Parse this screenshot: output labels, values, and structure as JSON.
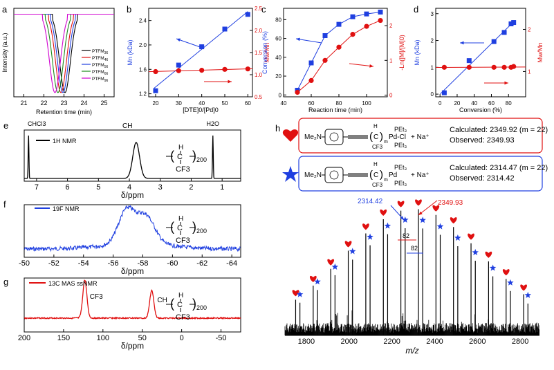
{
  "colors": {
    "blue": "#1f3fe0",
    "red": "#e01010",
    "black": "#000000",
    "green": "#1a8a1a",
    "magenta": "#d000d0"
  },
  "panel_labels": {
    "a": "a",
    "b": "b",
    "c": "c",
    "d": "d",
    "e": "e",
    "f": "f",
    "g": "g",
    "h": "h"
  },
  "chart_data": [
    {
      "id": "a",
      "type": "line",
      "xlabel": "Retention time (min)",
      "ylabel": "Intensity (a.u.)",
      "xlim": [
        20.5,
        25.5
      ],
      "xticks": [
        21,
        22,
        23,
        24,
        25
      ],
      "ylim": [
        0,
        1.05
      ],
      "series": [
        {
          "name": "PTFM36",
          "label": "PTFM",
          "sub": "36",
          "color": "#000000",
          "center": 23.05,
          "sigma": 0.27
        },
        {
          "name": "PTFM46",
          "label": "PTFM",
          "sub": "46",
          "color": "#e01010",
          "center": 22.85,
          "sigma": 0.27
        },
        {
          "name": "PTFM56",
          "label": "PTFM",
          "sub": "56",
          "color": "#1f3fe0",
          "center": 22.95,
          "sigma": 0.27
        },
        {
          "name": "PTFM66",
          "label": "PTFM",
          "sub": "66",
          "color": "#1a8a1a",
          "center": 22.7,
          "sigma": 0.27
        },
        {
          "name": "PTFM96",
          "label": "PTFM",
          "sub": "96",
          "color": "#d000d0",
          "center": 22.55,
          "sigma": 0.27
        }
      ]
    },
    {
      "id": "b",
      "type": "scatter",
      "xlabel": "[DTE]0/[Pd]0",
      "xlim": [
        17,
        62
      ],
      "xticks": [
        20,
        30,
        40,
        50,
        60
      ],
      "ylabel_left": "Mn (kDa)",
      "ylim_left": [
        1.15,
        2.6
      ],
      "yticks_left": [
        1.2,
        1.6,
        2.0,
        2.4
      ],
      "ylabel_right": "Mw/Mn",
      "ylim_right": [
        0.5,
        2.5
      ],
      "yticks_right": [
        0.5,
        1.0,
        1.5,
        2.0,
        2.5
      ],
      "series": [
        {
          "name": "Mn",
          "axis": "left",
          "marker": "square",
          "color": "#1f3fe0",
          "x": [
            20,
            30,
            40,
            50,
            60
          ],
          "y": [
            1.25,
            1.67,
            1.97,
            2.26,
            2.5
          ]
        },
        {
          "name": "Mw/Mn",
          "axis": "right",
          "marker": "circle",
          "color": "#e01010",
          "x": [
            20,
            30,
            40,
            50,
            60
          ],
          "y": [
            1.07,
            1.09,
            1.1,
            1.12,
            1.13
          ]
        }
      ]
    },
    {
      "id": "c",
      "type": "scatter",
      "xlabel": "Reaction time (min)",
      "xlim": [
        40,
        115
      ],
      "xticks": [
        40,
        60,
        80,
        100
      ],
      "ylabel_left": "Conversion (%)",
      "ylim_left": [
        -2,
        92
      ],
      "yticks_left": [
        0,
        20,
        40,
        60,
        80
      ],
      "ylabel_right": "-Ln([M]/[M]0)",
      "ylim_right": [
        -0.05,
        2.5
      ],
      "yticks_right": [
        0,
        1,
        2
      ],
      "series": [
        {
          "name": "Conversion",
          "axis": "left",
          "marker": "square",
          "color": "#1f3fe0",
          "x": [
            50,
            60,
            70,
            80,
            90,
            100,
            110
          ],
          "y": [
            5,
            34,
            63,
            75,
            83,
            86,
            88
          ]
        },
        {
          "name": "-Ln([M]/[M]0)",
          "axis": "right",
          "marker": "circle",
          "color": "#e01010",
          "x": [
            50,
            60,
            70,
            80,
            90,
            100,
            110
          ],
          "y": [
            0.08,
            0.42,
            1.0,
            1.38,
            1.75,
            1.98,
            2.15
          ]
        }
      ]
    },
    {
      "id": "d",
      "type": "scatter",
      "xlabel": "Conversion (%)",
      "xlim": [
        -5,
        100
      ],
      "xticks": [
        0,
        20,
        40,
        60,
        80
      ],
      "ylabel_left": "Mn (kDa)",
      "ylim_left": [
        -0.1,
        3.2
      ],
      "yticks_left": [
        0,
        1,
        2,
        3
      ],
      "ylabel_right": "Mw/Mn",
      "ylim_right": [
        0.4,
        2.5
      ],
      "yticks_right": [
        1,
        2
      ],
      "series": [
        {
          "name": "Mn",
          "axis": "left",
          "marker": "square",
          "color": "#1f3fe0",
          "x": [
            5,
            34,
            63,
            75,
            83,
            86
          ],
          "y": [
            0.05,
            1.25,
            1.96,
            2.3,
            2.62,
            2.67
          ]
        },
        {
          "name": "Mw/Mn",
          "axis": "right",
          "marker": "circle",
          "color": "#e01010",
          "x": [
            5,
            34,
            63,
            75,
            83,
            86
          ],
          "y": [
            1.1,
            1.1,
            1.1,
            1.1,
            1.1,
            1.12
          ]
        }
      ]
    },
    {
      "id": "e",
      "type": "line",
      "xlabel": "δ/ppm",
      "xlim": [
        7.4,
        0.4
      ],
      "xticks": [
        7,
        6,
        5,
        4,
        3,
        2,
        1
      ],
      "legend": "1H NMR",
      "annotations": [
        {
          "text": "CHCl3",
          "x": 7.26
        },
        {
          "text": "CH",
          "x": 3.8
        },
        {
          "text": "H2O",
          "x": 1.3
        }
      ]
    },
    {
      "id": "f",
      "type": "line",
      "xlabel": "δ/ppm",
      "xlim": [
        -50,
        -64.6
      ],
      "xticks": [
        -50,
        -52,
        -54,
        -56,
        -58,
        -60,
        -62,
        -64
      ],
      "legend": "19F NMR"
    },
    {
      "id": "g",
      "type": "line",
      "xlabel": "δ/ppm",
      "xlim": [
        200,
        -75
      ],
      "xticks": [
        200,
        150,
        100,
        50,
        0,
        -50
      ],
      "legend": "13C MAS ssNMR",
      "annotations": [
        {
          "text": "CF3",
          "x": 122
        },
        {
          "text": "CH",
          "x": 38
        }
      ]
    },
    {
      "id": "h",
      "type": "bar",
      "xlabel": "m/z",
      "xlim": [
        1700,
        2890
      ],
      "xticks": [
        1800,
        2000,
        2200,
        2400,
        2600,
        2800
      ],
      "series": [
        {
          "name": "heart",
          "marker": "heart",
          "color": "#e01010",
          "x": [
            1750,
            1832,
            1914,
            1996,
            2078,
            2160,
            2242,
            2324,
            2406,
            2488,
            2570,
            2652,
            2734,
            2816
          ]
        },
        {
          "name": "star",
          "marker": "star",
          "color": "#1f3fe0",
          "x": [
            1770,
            1852,
            1934,
            2016,
            2098,
            2180,
            2262,
            2344,
            2426,
            2508,
            2590,
            2672,
            2754,
            2836
          ]
        }
      ],
      "annotations": [
        {
          "text": "2314.42",
          "color": "#1f3fe0"
        },
        {
          "text": "2349.93",
          "color": "#e01010"
        },
        {
          "text": "82"
        },
        {
          "text": "82"
        }
      ]
    }
  ],
  "structure": {
    "subscript_200": "200",
    "cf3": "CF3",
    "h": "H",
    "c": "C"
  },
  "legend_h": {
    "box1": {
      "group": "Me₂N",
      "pd_label": "Pd-Cl",
      "pet3_top": "PEt₃",
      "pet3_bottom": "PEt₃",
      "na": "+ Na⁺",
      "calculated": "Calculated: 2349.92 (m = 22)",
      "observed": "Observed: 2349.93"
    },
    "box2": {
      "group": "Me₂N",
      "pd_label": "Pd",
      "pet3_top": "PEt₃",
      "pet3_bottom": "PEt₃",
      "na": "+ Na⁺",
      "calculated": "Calculated: 2314.47 (m = 22)",
      "observed": "Observed: 2314.42"
    }
  }
}
